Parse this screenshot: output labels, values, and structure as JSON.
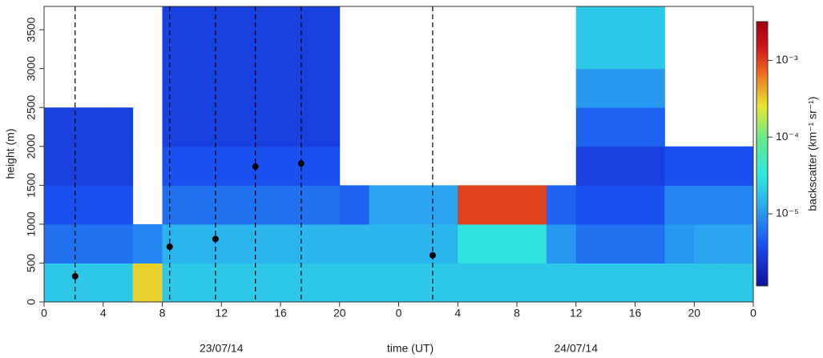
{
  "chart_data": {
    "type": "heatmap",
    "xlabel": "time (UT)",
    "ylabel": "height (m)",
    "colorbar_label": "backscatter (km⁻¹ sr⁻¹)",
    "xlim": [
      0,
      48
    ],
    "xticks": [
      0,
      4,
      8,
      12,
      16,
      20,
      {
        "value": 24,
        "label": "0"
      },
      {
        "value": 28,
        "label": "4"
      },
      {
        "value": 32,
        "label": "8"
      },
      {
        "value": 36,
        "label": "12"
      },
      {
        "value": 40,
        "label": "16"
      },
      {
        "value": 44,
        "label": "20"
      },
      {
        "value": 48,
        "label": "0"
      }
    ],
    "ylim": [
      0,
      3800
    ],
    "yticks": [
      0,
      500,
      1000,
      1500,
      2000,
      2500,
      3000,
      3500
    ],
    "x_edges": [
      0,
      2,
      4,
      6,
      8,
      10,
      12,
      14,
      16,
      18,
      20,
      22,
      24,
      26,
      28,
      30,
      32,
      34,
      36,
      38,
      40,
      42,
      44,
      46,
      48
    ],
    "y_edges": [
      0,
      500,
      1000,
      1500,
      2000,
      2500,
      3000,
      3500,
      3800
    ],
    "z": [
      [
        2e-05,
        2e-05,
        2e-05,
        0.0003,
        2e-05,
        2e-05,
        2e-05,
        2e-05,
        2e-05,
        2e-05,
        2e-05,
        2e-05,
        2e-05,
        2e-05,
        2e-05,
        2e-05,
        2e-05,
        2e-05,
        2e-05,
        2e-05,
        2e-05,
        2e-05,
        2e-05,
        2e-05
      ],
      [
        6e-06,
        6e-06,
        6e-06,
        8e-06,
        1.5e-05,
        1.5e-05,
        1.5e-05,
        1.5e-05,
        1.5e-05,
        1.5e-05,
        1.5e-05,
        1.5e-05,
        1.5e-05,
        1.5e-05,
        3e-05,
        3e-05,
        3e-05,
        1e-05,
        6e-06,
        6e-06,
        6e-06,
        1e-05,
        1.2e-05,
        1.2e-05
      ],
      [
        4e-06,
        4e-06,
        4e-06,
        null,
        6e-06,
        6e-06,
        6e-06,
        6e-06,
        6e-06,
        6e-06,
        5e-06,
        1.2e-05,
        1.2e-05,
        1.2e-05,
        0.001,
        0.001,
        0.001,
        5e-06,
        4e-06,
        4e-06,
        4e-06,
        8e-06,
        8e-06,
        8e-06
      ],
      [
        3e-06,
        3e-06,
        3e-06,
        null,
        4e-06,
        4e-06,
        4e-06,
        4e-06,
        4e-06,
        4e-06,
        null,
        null,
        null,
        null,
        null,
        null,
        null,
        null,
        3e-06,
        3e-06,
        3e-06,
        4e-06,
        4e-06,
        4e-06
      ],
      [
        3e-06,
        3e-06,
        3e-06,
        null,
        3e-06,
        3e-06,
        3e-06,
        3e-06,
        3e-06,
        3e-06,
        null,
        null,
        null,
        null,
        null,
        null,
        null,
        null,
        5e-06,
        5e-06,
        5e-06,
        null,
        null,
        null
      ],
      [
        null,
        null,
        null,
        null,
        3e-06,
        3e-06,
        3e-06,
        3e-06,
        3e-06,
        3e-06,
        null,
        null,
        null,
        null,
        null,
        null,
        null,
        null,
        1e-05,
        1e-05,
        1e-05,
        null,
        null,
        null
      ],
      [
        null,
        null,
        null,
        null,
        3e-06,
        3e-06,
        3e-06,
        3e-06,
        3e-06,
        3e-06,
        null,
        null,
        null,
        null,
        null,
        null,
        null,
        null,
        2e-05,
        2e-05,
        2e-05,
        null,
        null,
        null
      ],
      [
        null,
        null,
        null,
        null,
        3e-06,
        3e-06,
        3e-06,
        3e-06,
        3e-06,
        3e-06,
        null,
        null,
        null,
        null,
        null,
        null,
        null,
        null,
        2e-05,
        2e-05,
        2e-05,
        null,
        null,
        null
      ]
    ],
    "clim": [
      1.15e-06,
      0.0032
    ],
    "log_color": true,
    "cticks": [
      {
        "value": 0.001,
        "label": "10⁻³"
      },
      {
        "value": 0.0001,
        "label": "10⁻⁴"
      },
      {
        "value": 1e-05,
        "label": "10⁻⁵"
      }
    ],
    "markers": {
      "color": "#000000",
      "x": [
        2.1,
        8.5,
        11.6,
        14.3,
        17.4,
        26.3
      ],
      "values": [
        330,
        710,
        810,
        1740,
        1780,
        600
      ]
    },
    "date_labels": [
      {
        "text": "23/07/14",
        "x": 12
      },
      {
        "text": "24/07/14",
        "x": 36
      }
    ]
  }
}
